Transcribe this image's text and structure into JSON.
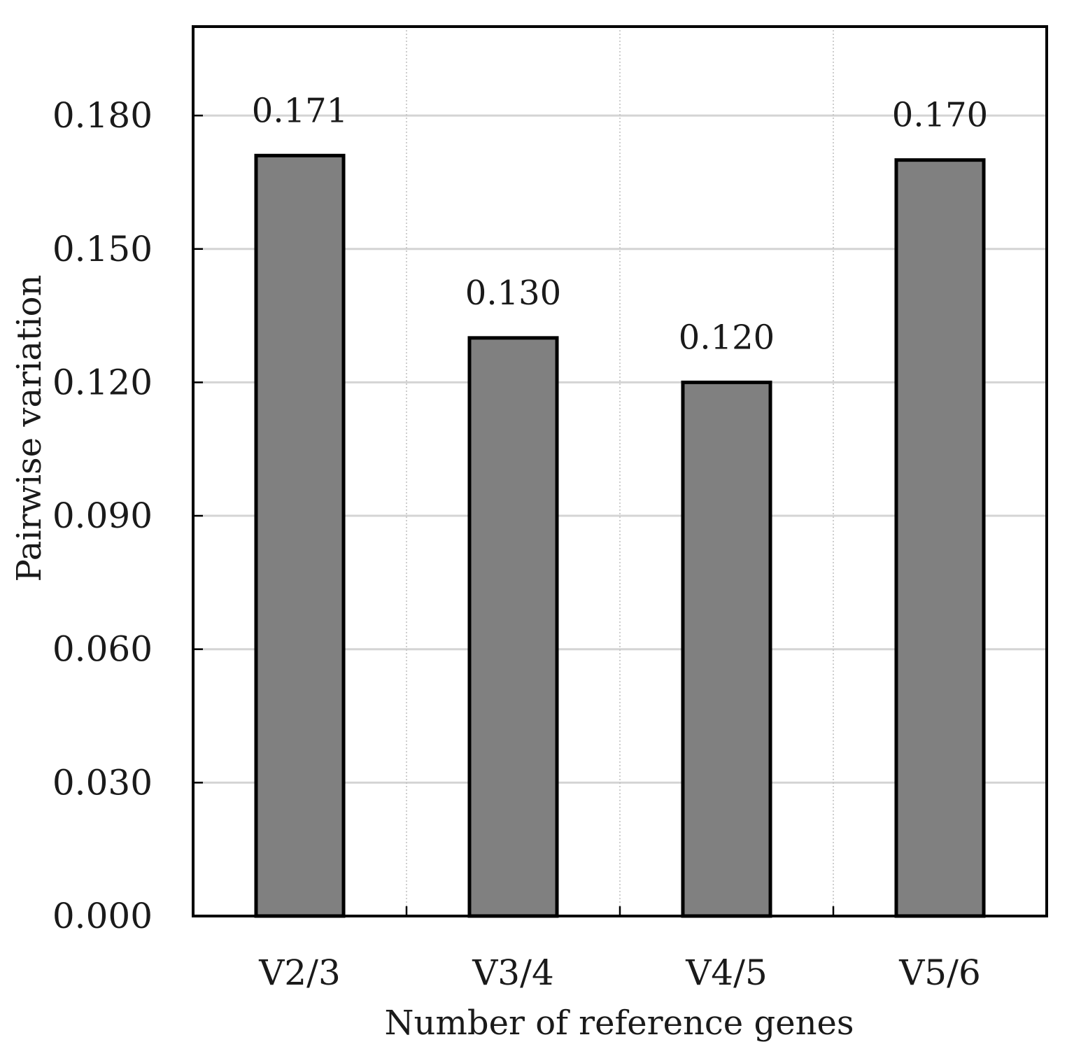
{
  "chart_data": {
    "type": "bar",
    "categories": [
      "V2/3",
      "V3/4",
      "V4/5",
      "V5/6"
    ],
    "values": [
      0.171,
      0.13,
      0.12,
      0.17
    ],
    "value_labels": [
      "0.171",
      "0.130",
      "0.120",
      "0.170"
    ],
    "title": "",
    "xlabel": "Number of reference genes",
    "ylabel": "Pairwise variation",
    "ylim": [
      0,
      0.2
    ],
    "yticks": [
      0.0,
      0.03,
      0.06,
      0.09,
      0.12,
      0.15,
      0.18
    ],
    "ytick_labels": [
      "0.000",
      "0.030",
      "0.060",
      "0.090",
      "0.120",
      "0.150",
      "0.180"
    ],
    "grid": "horizontal major + vertical dotted between categories",
    "bar_color": "#808080",
    "bar_edge_color": "#000000",
    "gridline_color": "#d4d4d4"
  }
}
